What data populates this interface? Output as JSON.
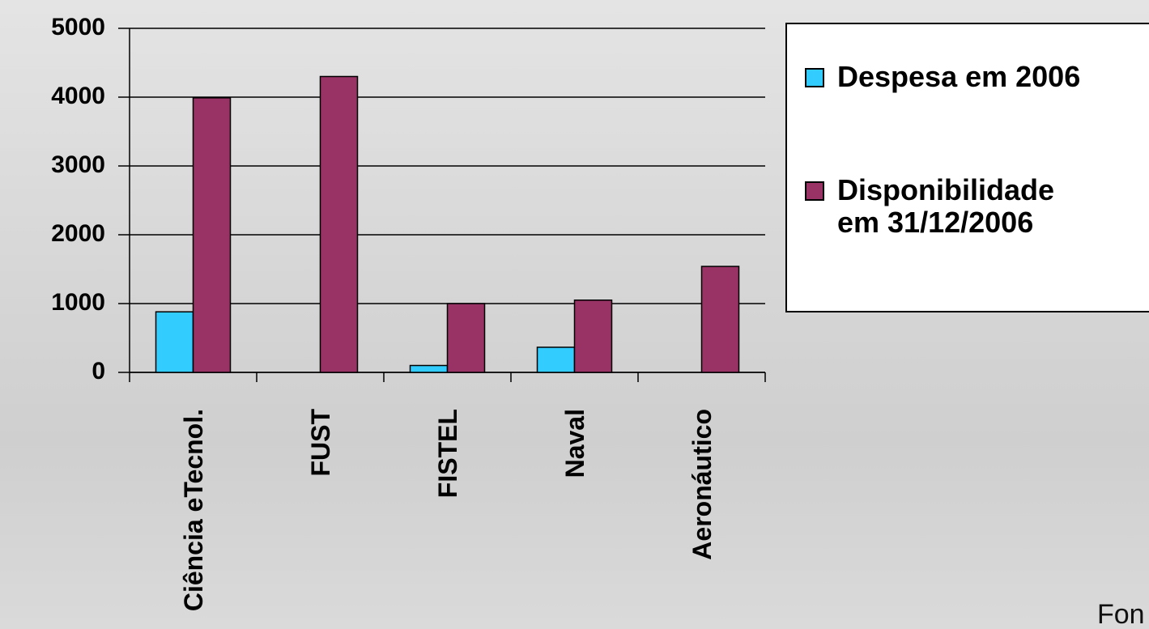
{
  "chart_data": {
    "type": "bar",
    "categories": [
      "Ciência eTecnol.",
      "FUST",
      "FISTEL",
      "Naval",
      "Aeronáutico"
    ],
    "series": [
      {
        "name": "Despesa em 2006",
        "color": "#33ccff",
        "values": [
          880,
          0,
          100,
          365,
          0
        ]
      },
      {
        "name": "Disponibilidade em 31/12/2006",
        "color": "#993366",
        "values": [
          3990,
          4300,
          1000,
          1050,
          1540
        ]
      }
    ],
    "ylim": [
      0,
      5000
    ],
    "yticks": [
      0,
      1000,
      2000,
      3000,
      4000,
      5000
    ],
    "grid": true,
    "footer": "Fon"
  }
}
